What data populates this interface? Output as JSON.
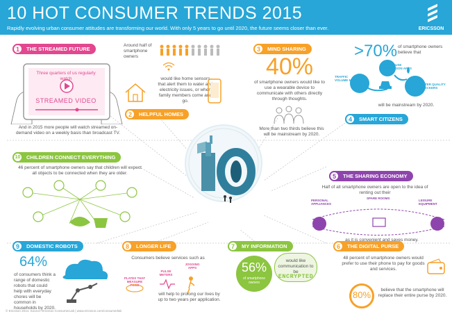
{
  "header": {
    "title": "10 HOT CONSUMER TRENDS 2015",
    "subtitle": "Rapidly evolving urban consumer attitudes are transforming our world. With only 5 years to go until 2020, the future seems closer than ever.",
    "logo_text": "ERICSSON"
  },
  "colors": {
    "header_blue": "#27a6d7",
    "pink": "#e2478f",
    "orange": "#f7a128",
    "blue": "#27a6d7",
    "green": "#8cc540",
    "purple": "#8e44ad"
  },
  "trends": {
    "t1": {
      "num": "1",
      "label": "THE STREAMED FUTURE",
      "screen_text": "Three quarters of us regularly watch",
      "screen_label": "STREAMED VIDEO",
      "body": "And in 2015 more people will watch streamed on-demand video on a weekly basis than broadcast TV."
    },
    "t2": {
      "num": "2",
      "label": "HELPFUL HOMES",
      "top": "Around half of smartphone owners",
      "body": "would like home sensors that alert them to water and electricity issues, or when family members come and go."
    },
    "t3": {
      "num": "3",
      "label": "MIND SHARING",
      "big": "40%",
      "body": "of smartphone owners would like to use a wearable device to communicate with others directly through thoughts.",
      "foot": "More than two thirds believe this will be mainstream by 2020."
    },
    "t4": {
      "num": "4",
      "label": "SMART CITIZENS",
      "big": ">70%",
      "top": "of smartphone owners believe that",
      "apps": [
        "ENERGY USE COMPARISON APPS",
        "TRAFFIC VOLUME MAPS",
        "WATER QUALITY CHECKERS"
      ],
      "foot": "will be mainstream by 2020."
    },
    "t5": {
      "num": "5",
      "label": "THE SHARING ECONOMY",
      "body": "Half of all smartphone owners are open to the idea of renting out their",
      "items": [
        "PERSONAL APPLIANCES",
        "SPARE ROOMS",
        "LEISURE EQUIPMENT"
      ],
      "foot": "as it is convenient and saves money."
    },
    "t6": {
      "num": "6",
      "label": "THE DIGITAL PURSE",
      "body": "48 percent of smartphone owners would prefer to use their phone to pay for goods and services.",
      "big": "80%",
      "foot": "believe that the smartphone will replace their entire purse by 2020."
    },
    "t7": {
      "num": "7",
      "label": "MY INFORMATION",
      "big": "56%",
      "big_sub": "of smartphone owners",
      "bubble": "would like communication to be",
      "encrypted": "ENCRYPTED"
    },
    "t8": {
      "num": "8",
      "label": "LONGER LIFE",
      "top": "Consumers believe services such as",
      "items": [
        "PLATES THAT MEASURE FOOD",
        "PULSE METERS",
        "JOGGING APPS"
      ],
      "body": "will help to prolong our lives by up to two years per application."
    },
    "t9": {
      "num": "9",
      "label": "DOMESTIC ROBOTS",
      "big": "64%",
      "body": "of consumers think a range of domestic robots that could help with everyday chores will be common in households by 2020."
    },
    "t10": {
      "num": "10",
      "label": "CHILDREN CONNECT EVERYTHING",
      "body": "46 percent of smartphone owners say that children will expect all objects to be connected when they are older."
    }
  },
  "footer": "© Ericsson 2014. Source: Ericsson ConsumerLab | www.ericsson.com/consumerlab"
}
